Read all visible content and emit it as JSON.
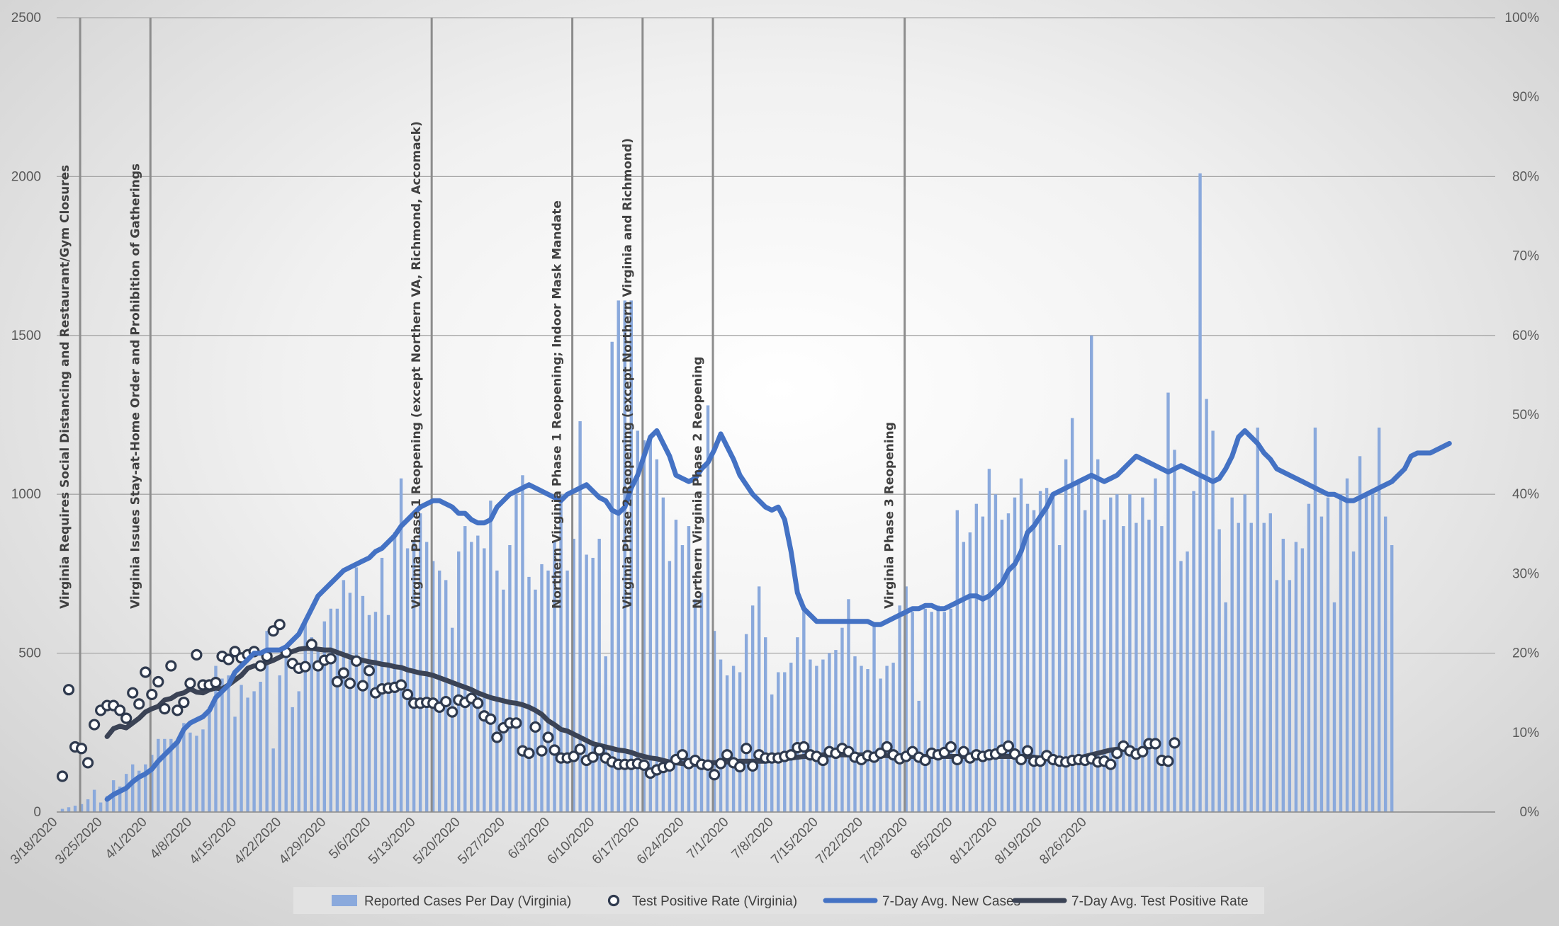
{
  "colors": {
    "bars": "#8aa9dc",
    "avg_cases_line": "#4472c4",
    "avg_rate_line": "#3b4355",
    "dot_stroke": "#2f3a4e",
    "dot_fill": "#ffffff",
    "event_line": "#8c8c8c",
    "grid": "#a6a6a6"
  },
  "chart_data": {
    "type": "bar",
    "grid": true,
    "legend_position": "bottom",
    "x_tick_labels": [
      "3/18/2020",
      "3/25/2020",
      "4/1/2020",
      "4/8/2020",
      "4/15/2020",
      "4/22/2020",
      "4/29/2020",
      "5/6/2020",
      "5/13/2020",
      "5/20/2020",
      "5/27/2020",
      "6/3/2020",
      "6/10/2020",
      "6/17/2020",
      "6/24/2020",
      "7/1/2020",
      "7/8/2020",
      "7/15/2020",
      "7/22/2020",
      "7/29/2020",
      "8/5/2020",
      "8/12/2020",
      "8/19/2020",
      "8/26/2020"
    ],
    "y_left": {
      "ticks": [
        "0",
        "500",
        "1000",
        "1500",
        "2000",
        "2500"
      ],
      "ylim": [
        0,
        2500
      ]
    },
    "y_right": {
      "ticks": [
        "0%",
        "10%",
        "20%",
        "30%",
        "40%",
        "50%",
        "60%",
        "70%",
        "80%",
        "90%",
        "100%"
      ],
      "ylim": [
        0,
        100
      ]
    },
    "start_date": "2020-03-18",
    "series": [
      {
        "name": "Reported Cases Per Day (Virginia)",
        "type": "bar",
        "axis": "left",
        "values": [
          10,
          15,
          20,
          25,
          40,
          70,
          30,
          50,
          100,
          80,
          120,
          150,
          130,
          150,
          180,
          230,
          230,
          230,
          220,
          280,
          250,
          240,
          260,
          330,
          460,
          420,
          430,
          300,
          400,
          360,
          380,
          410,
          570,
          200,
          430,
          500,
          330,
          380,
          600,
          550,
          510,
          600,
          640,
          640,
          730,
          690,
          770,
          680,
          620,
          630,
          800,
          620,
          880,
          1050,
          830,
          850,
          940,
          850,
          790,
          760,
          730,
          580,
          820,
          900,
          850,
          870,
          830,
          980,
          760,
          700,
          840,
          1000,
          1060,
          740,
          700,
          780,
          760,
          850,
          1000,
          760,
          860,
          1230,
          810,
          800,
          860,
          490,
          1480,
          1610,
          1610,
          1610,
          1200,
          1170,
          1180,
          1110,
          990,
          790,
          920,
          840,
          900,
          670,
          690,
          1280,
          570,
          480,
          430,
          460,
          440,
          560,
          650,
          710,
          550,
          370,
          440,
          440,
          470,
          550,
          650,
          480,
          460,
          480,
          500,
          510,
          580,
          670,
          490,
          460,
          450,
          590,
          420,
          460,
          470,
          650,
          710,
          630,
          350,
          640,
          630,
          650,
          630,
          640,
          950,
          850,
          880,
          970,
          930,
          1080,
          1000,
          920,
          940,
          990,
          1050,
          970,
          950,
          1010,
          1020,
          1000,
          840,
          1110,
          1240,
          1040,
          950,
          1500,
          1110,
          920,
          990,
          1000,
          900,
          1000,
          910,
          990,
          920,
          1050,
          900,
          1320,
          1140,
          790,
          820,
          1010,
          2010,
          1300,
          1200,
          890,
          660,
          990,
          910,
          1000,
          910,
          1210,
          910,
          940,
          730,
          860,
          730,
          850,
          830,
          970,
          1210,
          930,
          990,
          660,
          1000,
          1050,
          820,
          1120,
          1000,
          1010,
          1210,
          930,
          840
        ]
      },
      {
        "name": "Test Positive Rate (Virginia)",
        "type": "scatter",
        "axis": "right",
        "unit": "%",
        "values": [
          4.5,
          15.4,
          8.2,
          8,
          6.2,
          11,
          12.8,
          13.4,
          13.4,
          12.8,
          11.8,
          15,
          13.6,
          17.6,
          14.8,
          16.4,
          13,
          18.4,
          12.8,
          13.8,
          16.2,
          19.8,
          16,
          16,
          16.3,
          19.6,
          19.2,
          20.2,
          19.4,
          19.8,
          20.2,
          18.4,
          19.6,
          22.8,
          23.6,
          20.1,
          18.7,
          18.1,
          18.3,
          21.1,
          18.4,
          19.1,
          19.3,
          16.4,
          17.5,
          16.2,
          19,
          15.9,
          17.8,
          15,
          15.5,
          15.6,
          15.7,
          16,
          14.8,
          13.7,
          13.7,
          13.8,
          13.7,
          13.2,
          13.9,
          12.6,
          14.1,
          13.8,
          14.3,
          13.7,
          12.1,
          11.7,
          9.4,
          10.6,
          11.2,
          11.2,
          7.7,
          7.4,
          10.7,
          7.7,
          9.4,
          7.8,
          6.8,
          6.8,
          7,
          7.9,
          6.5,
          6.9,
          7.8,
          6.8,
          6.3,
          6,
          6,
          6,
          6.1,
          5.9,
          4.9,
          5.3,
          5.6,
          5.8,
          6.6,
          7.2,
          6.1,
          6.5,
          6,
          5.9,
          4.7,
          6.1,
          7.2,
          6.2,
          5.7,
          8,
          5.8,
          7.2,
          6.8,
          6.8,
          6.8,
          7,
          7.2,
          8.1,
          8.2,
          7.2,
          7,
          6.5,
          7.6,
          7.4,
          8,
          7.6,
          6.9,
          6.6,
          7.1,
          6.9,
          7.4,
          8.2,
          7.2,
          6.7,
          7,
          7.6,
          6.9,
          6.5,
          7.4,
          7.2,
          7.5,
          8.2,
          6.6,
          7.6,
          6.8,
          7.2,
          7,
          7.2,
          7.3,
          7.8,
          8.3,
          7.3,
          6.6,
          7.7,
          6.4,
          6.4,
          7.1,
          6.6,
          6.4,
          6.3,
          6.5,
          6.6,
          6.5,
          6.7,
          6.3,
          6.4,
          6,
          7.4,
          8.3,
          7.7,
          7.3,
          7.6,
          8.6,
          8.6,
          6.5,
          6.4,
          8.7
        ],
        "values_note": "shown for the first 160 days; remaining points continue at roughly 6-9%"
      },
      {
        "name": "7-Day Avg. New Cases",
        "type": "line",
        "axis": "left",
        "values": [
          null,
          null,
          null,
          null,
          null,
          null,
          null,
          40,
          55,
          65,
          75,
          95,
          110,
          120,
          135,
          160,
          180,
          200,
          220,
          260,
          280,
          290,
          300,
          320,
          360,
          380,
          400,
          440,
          460,
          480,
          500,
          500,
          510,
          510,
          510,
          520,
          540,
          560,
          600,
          640,
          680,
          700,
          720,
          740,
          760,
          770,
          780,
          790,
          800,
          820,
          830,
          850,
          870,
          900,
          920,
          940,
          960,
          970,
          980,
          980,
          970,
          960,
          940,
          940,
          920,
          910,
          910,
          920,
          960,
          980,
          1000,
          1010,
          1020,
          1030,
          1020,
          1010,
          1000,
          990,
          980,
          1000,
          1010,
          1020,
          1030,
          1010,
          990,
          980,
          950,
          940,
          960,
          1020,
          1060,
          1120,
          1180,
          1200,
          1160,
          1120,
          1060,
          1050,
          1040,
          1050,
          1080,
          1100,
          1140,
          1190,
          1150,
          1110,
          1060,
          1030,
          1000,
          980,
          960,
          950,
          960,
          920,
          820,
          690,
          640,
          620,
          600,
          600,
          600,
          600,
          600,
          600,
          600,
          600,
          600,
          590,
          590,
          600,
          610,
          620,
          630,
          640,
          640,
          650,
          650,
          640,
          640,
          650,
          660,
          670,
          680,
          680,
          670,
          680,
          700,
          720,
          760,
          780,
          820,
          880,
          900,
          930,
          960,
          1000,
          1010,
          1020,
          1030,
          1040,
          1050,
          1060,
          1050,
          1040,
          1050,
          1060,
          1080,
          1100,
          1120,
          1110,
          1100,
          1090,
          1080,
          1070,
          1080,
          1090,
          1080,
          1070,
          1060,
          1050,
          1040,
          1050,
          1080,
          1120,
          1180,
          1200,
          1180,
          1160,
          1130,
          1110,
          1080,
          1070,
          1060,
          1050,
          1040,
          1030,
          1020,
          1010,
          1000,
          1000,
          990,
          980,
          980,
          990,
          1000,
          1010,
          1020,
          1030,
          1040,
          1060,
          1080,
          1120,
          1130,
          1130,
          1130,
          1140,
          1150,
          1160
        ],
        "values_note": "approximate reading of the plotted 7-day average"
      },
      {
        "name": "7-Day Avg. Test Positive Rate",
        "type": "line",
        "axis": "right",
        "unit": "%",
        "values": [
          null,
          null,
          null,
          null,
          null,
          null,
          null,
          9.5,
          10.5,
          10.8,
          10.6,
          11.2,
          11.8,
          12.6,
          13,
          13.3,
          14.1,
          14.3,
          14.8,
          15,
          15.5,
          15.1,
          15,
          15.4,
          15.6,
          15.5,
          16,
          16.6,
          17.2,
          18.1,
          18.4,
          18.4,
          18.8,
          19.1,
          19.5,
          19.9,
          20.2,
          20.5,
          20.6,
          20.6,
          20.5,
          20.4,
          20.4,
          20.1,
          19.8,
          19.5,
          19.3,
          19.1,
          18.9,
          18.8,
          18.6,
          18.5,
          18.3,
          18.2,
          17.9,
          17.7,
          17.5,
          17.4,
          17.2,
          16.9,
          16.6,
          16.3,
          16,
          15.7,
          15.4,
          15,
          14.7,
          14.4,
          14.2,
          14,
          13.8,
          13.7,
          13.5,
          13.2,
          12.8,
          12.3,
          11.5,
          11,
          10.4,
          10.2,
          9.8,
          9.4,
          9,
          8.6,
          8.4,
          8.2,
          8,
          7.8,
          7.7,
          7.5,
          7.2,
          7,
          6.8,
          6.7,
          6.5,
          6.3,
          6.2,
          6.1,
          6,
          6,
          6.1,
          6.2,
          6.2,
          6.2,
          6.3,
          6.3,
          6.4,
          6.4,
          6.4,
          6.4,
          6.4,
          6.5,
          6.6,
          6.7,
          6.8,
          6.9,
          7,
          7,
          7.1,
          7.2,
          7.2,
          7.2,
          7.2,
          7.2,
          7.2,
          7.2,
          7.2,
          7.1,
          7.1,
          7.1,
          7,
          7,
          7,
          7,
          7,
          7,
          7,
          7,
          7,
          7,
          7,
          7,
          7,
          7,
          7,
          7,
          7,
          7,
          7,
          7,
          7,
          7,
          6.9,
          6.8,
          6.7,
          6.6,
          6.5,
          6.5,
          6.6,
          6.8,
          7,
          7.2,
          7.4,
          7.6,
          7.8,
          7.9,
          8,
          8
        ],
        "values_note": "approximate reading of the plotted 7-day average"
      }
    ],
    "annotations": [
      {
        "day": 3,
        "label": "Virginia Requires Social Distancing and Restaurant/Gym Closures"
      },
      {
        "day": 14,
        "label": "Virginia Issues Stay-at-Home Order and Prohibition of Gatherings"
      },
      {
        "day": 58,
        "label": "Virginia Phase 1 Reopening (except Northern VA, Richmond, Accomack)"
      },
      {
        "day": 80,
        "label": "Northern Virginia Phase 1 Reopening; Indoor Mask Mandate"
      },
      {
        "day": 91,
        "label": "Virginia Phase 2 Reopening (except Northern Virginia and Richmond)"
      },
      {
        "day": 102,
        "label": "Northern Virginia Phase 2 Reopening"
      },
      {
        "day": 132,
        "label": "Virginia Phase 3 Reopening"
      }
    ]
  }
}
